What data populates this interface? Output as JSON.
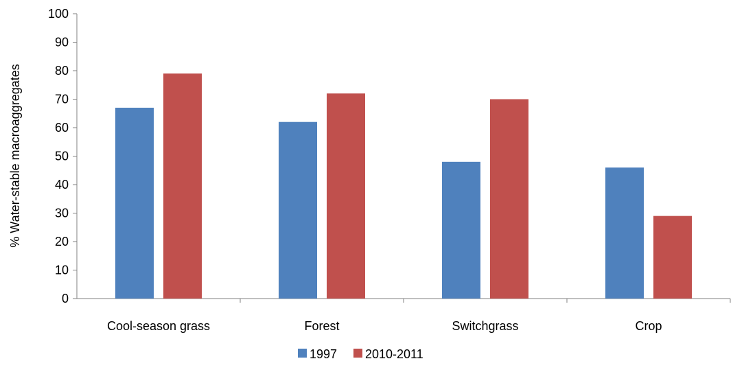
{
  "chart_data": {
    "type": "bar",
    "title": "",
    "xlabel": "",
    "ylabel": "% Water-stable macroaggregates",
    "ylim": [
      0,
      100
    ],
    "yticks": [
      0,
      10,
      20,
      30,
      40,
      50,
      60,
      70,
      80,
      90,
      100
    ],
    "categories": [
      "Cool-season grass",
      "Forest",
      "Switchgrass",
      "Crop"
    ],
    "series": [
      {
        "name": "1997",
        "color": "#4F81BD",
        "values": [
          67,
          62,
          48,
          46
        ]
      },
      {
        "name": "2010-2011",
        "color": "#C0504D",
        "values": [
          79,
          72,
          70,
          29
        ]
      }
    ],
    "grid": false,
    "legend_position": "bottom"
  }
}
